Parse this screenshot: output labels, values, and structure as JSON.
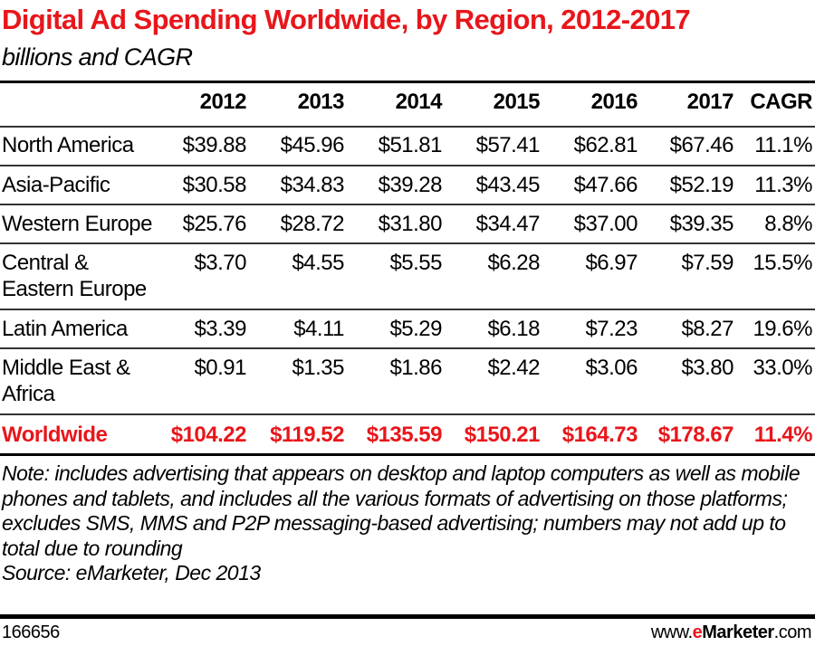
{
  "title": "Digital Ad Spending Worldwide, by Region, 2012-2017",
  "subtitle": "billions and CAGR",
  "chart_data": {
    "type": "table",
    "title": "Digital Ad Spending Worldwide, by Region, 2012-2017",
    "subtitle": "billions and CAGR",
    "columns": [
      "",
      "2012",
      "2013",
      "2014",
      "2015",
      "2016",
      "2017",
      "CAGR"
    ],
    "rows": [
      {
        "label": "North America",
        "values": [
          "$39.88",
          "$45.96",
          "$51.81",
          "$57.41",
          "$62.81",
          "$67.46",
          "11.1%"
        ]
      },
      {
        "label": "Asia-Pacific",
        "values": [
          "$30.58",
          "$34.83",
          "$39.28",
          "$43.45",
          "$47.66",
          "$52.19",
          "11.3%"
        ]
      },
      {
        "label": "Western Europe",
        "values": [
          "$25.76",
          "$28.72",
          "$31.80",
          "$34.47",
          "$37.00",
          "$39.35",
          "8.8%"
        ]
      },
      {
        "label": "Central & Eastern Europe",
        "values": [
          "$3.70",
          "$4.55",
          "$5.55",
          "$6.28",
          "$6.97",
          "$7.59",
          "15.5%"
        ]
      },
      {
        "label": "Latin America",
        "values": [
          "$3.39",
          "$4.11",
          "$5.29",
          "$6.18",
          "$7.23",
          "$8.27",
          "19.6%"
        ]
      },
      {
        "label": "Middle East & Africa",
        "values": [
          "$0.91",
          "$1.35",
          "$1.86",
          "$2.42",
          "$3.06",
          "$3.80",
          "33.0%"
        ]
      }
    ],
    "total": {
      "label": "Worldwide",
      "values": [
        "$104.22",
        "$119.52",
        "$135.59",
        "$150.21",
        "$164.73",
        "$178.67",
        "11.4%"
      ]
    }
  },
  "note": "Note: includes advertising that appears on desktop and laptop computers as well as mobile phones and tablets, and includes all the various formats of advertising on those platforms; excludes SMS, MMS and P2P messaging-based advertising; numbers may not add up to total due to rounding",
  "source": "Source: eMarketer, Dec 2013",
  "chart_id": "166656",
  "brand": {
    "prefix": "www.",
    "e": "e",
    "name": "Marketer",
    "suffix": ".com"
  },
  "colors": {
    "accent": "#e8161b",
    "text": "#000000"
  }
}
